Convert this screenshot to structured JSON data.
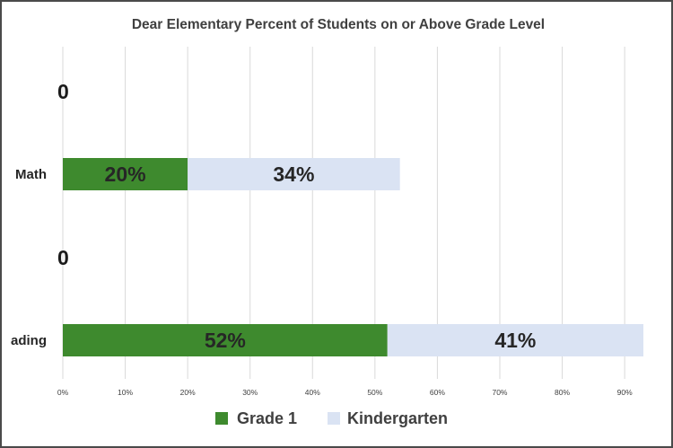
{
  "chart_data": {
    "type": "bar",
    "orientation": "horizontal",
    "stacked": true,
    "title": "Dear Elementary Percent of  Students on or Above Grade Level",
    "categories": [
      "Math",
      "ading"
    ],
    "series": [
      {
        "name": "Grade 1",
        "color": "#3e8a2e",
        "values": [
          20,
          52
        ],
        "labels": [
          "20%",
          "52%"
        ]
      },
      {
        "name": "Kindergarten",
        "color": "#dae3f3",
        "values": [
          34,
          41
        ],
        "labels": [
          "34%",
          "41%"
        ]
      }
    ],
    "empty_row_labels": [
      "0",
      "0"
    ],
    "xlim": [
      0,
      93
    ],
    "xticks": [
      0,
      10,
      20,
      30,
      40,
      50,
      60,
      70,
      80,
      90
    ],
    "xtick_labels": [
      "0%",
      "10%",
      "20%",
      "30%",
      "40%",
      "50%",
      "60%",
      "70%",
      "80%",
      "90%"
    ],
    "xlabel": "",
    "ylabel": "",
    "grid": true,
    "legend_position": "bottom"
  }
}
